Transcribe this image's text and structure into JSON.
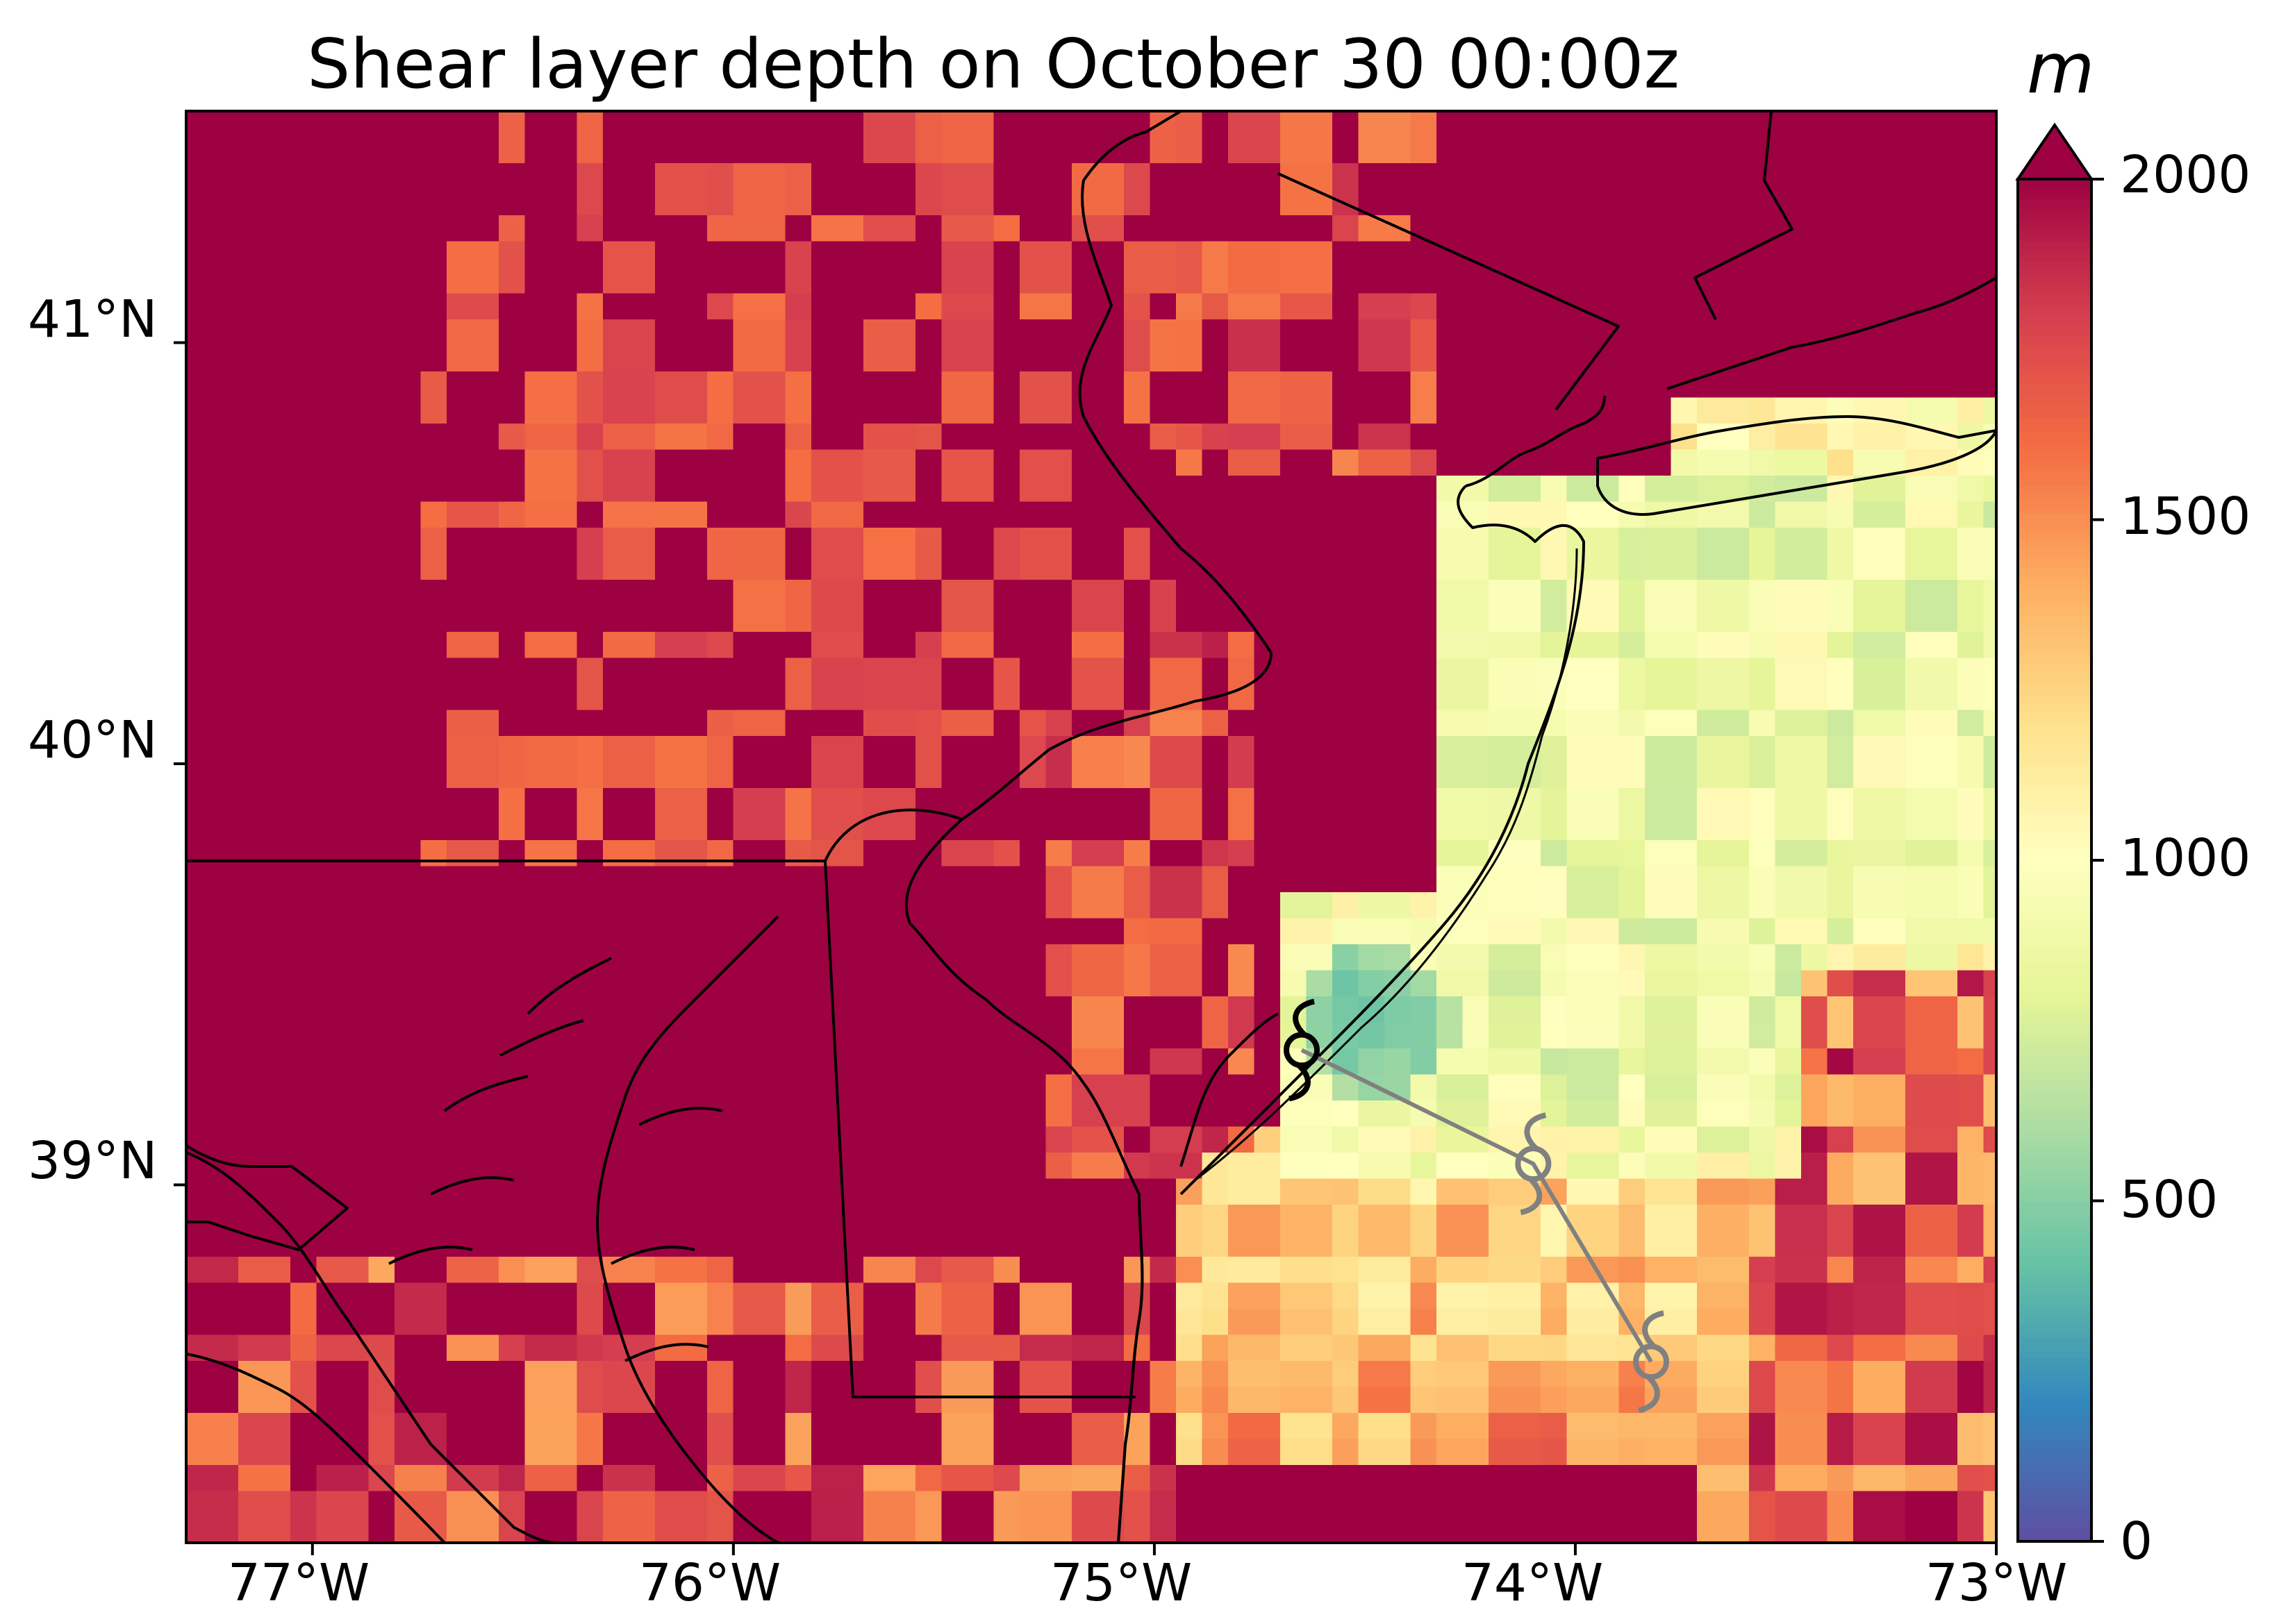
{
  "title": "Shear layer depth on October 30 00:00z",
  "colorbar": {
    "unit_label": "m",
    "ticks": [
      "0",
      "500",
      "1000",
      "1500",
      "2000"
    ],
    "extend": "max",
    "colormap": "Spectral_r",
    "colors": [
      "#5e4fa2",
      "#3288bd",
      "#66c2a5",
      "#abdda4",
      "#e6f598",
      "#ffffbf",
      "#fee08b",
      "#fdae61",
      "#f46d43",
      "#d53e4f",
      "#9e0142"
    ]
  },
  "axes": {
    "lat_ticks": [
      "41°N",
      "40°N",
      "39°N"
    ],
    "lon_ticks": [
      "77°W",
      "76°W",
      "75°W",
      "74°W",
      "73°W"
    ]
  },
  "storm_track": {
    "points": [
      {
        "lon": -74.65,
        "lat": 39.32
      },
      {
        "lon": -74.1,
        "lat": 39.05
      },
      {
        "lon": -73.82,
        "lat": 38.58
      }
    ],
    "line_color": "#808080",
    "current_symbol_color": "#000000"
  }
}
